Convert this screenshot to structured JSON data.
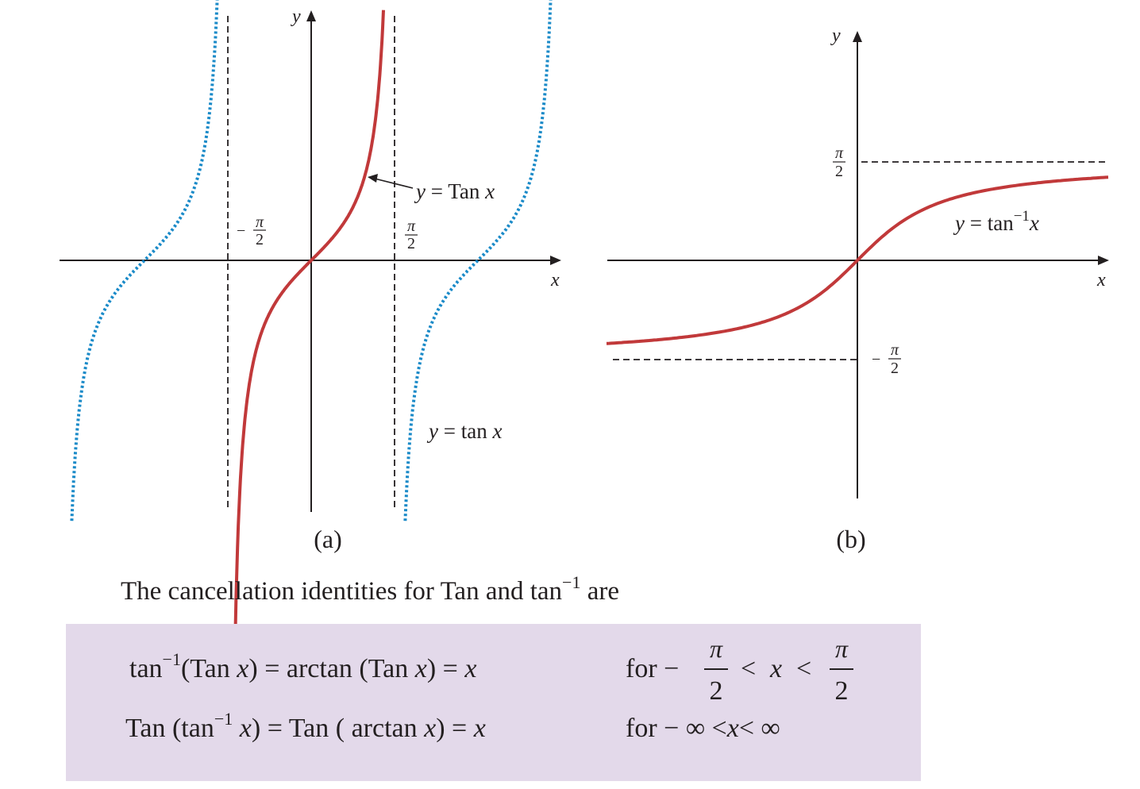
{
  "panel_a": {
    "y_axis": "y",
    "x_axis": "x",
    "left_asymptote": {
      "sign": "−",
      "numerator": "π",
      "denominator": "2"
    },
    "right_asymptote": {
      "numerator": "π",
      "denominator": "2"
    },
    "red_label": [
      "y",
      " = Tan ",
      "x"
    ],
    "blue_label": [
      "y",
      " = tan ",
      "x"
    ],
    "caption": "(a)"
  },
  "panel_b": {
    "y_axis": "y",
    "x_axis": "x",
    "upper_asymptote": {
      "numerator": "π",
      "denominator": "2"
    },
    "lower_asymptote": {
      "sign": "−",
      "numerator": "π",
      "denominator": "2"
    },
    "red_label": [
      "y",
      " = tan",
      "−1",
      "x"
    ],
    "caption": "(b)"
  },
  "text": [
    "The cancellation identities for Tan  and tan",
    "−1",
    " are"
  ],
  "identities": [
    {
      "lhs": [
        "tan",
        "−1",
        "(Tan ",
        "x",
        ") = ",
        "arctan (Tan ",
        "x",
        ") = ",
        "x"
      ],
      "condition": [
        "for −",
        "π",
        "2",
        "<",
        "x",
        "<",
        "π",
        "2"
      ]
    },
    {
      "lhs": [
        "Tan (tan",
        "−1",
        " x",
        ") = ",
        "Tan ( arctan ",
        "x",
        ") = ",
        "x"
      ],
      "condition": [
        "for − ∞ <",
        "x",
        "< ∞"
      ]
    }
  ]
}
